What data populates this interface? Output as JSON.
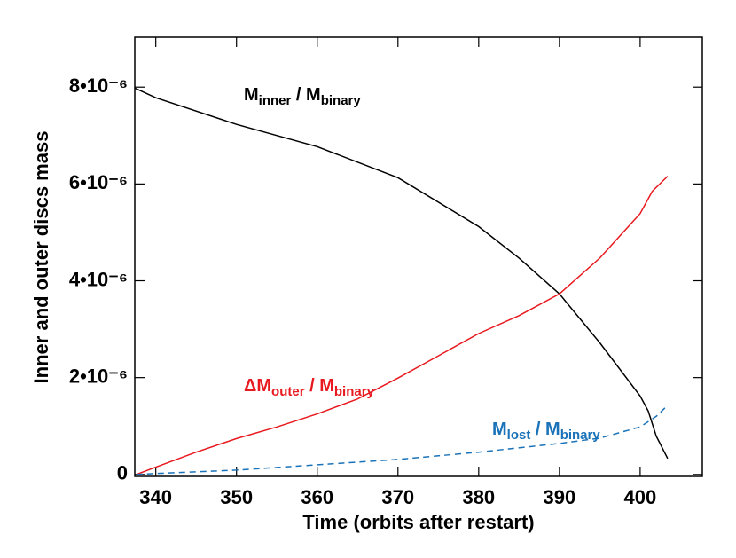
{
  "chart_data": {
    "type": "line",
    "xlabel": "Time (orbits after restart)",
    "ylabel": "Inner and outer discs mass",
    "xlim": [
      337.4,
      407.7
    ],
    "ylim": [
      -4e-08,
      9.03e-06
    ],
    "xticks": [
      340,
      350,
      360,
      370,
      380,
      390,
      400
    ],
    "yticks": [
      0,
      {
        "value": 2e-06,
        "label": "2•10⁻⁶"
      },
      {
        "value": 4e-06,
        "label": "4•10⁻⁶"
      },
      {
        "value": 6e-06,
        "label": "6•10⁻⁶"
      },
      {
        "value": 8e-06,
        "label": "8•10⁻⁶"
      }
    ],
    "series": [
      {
        "color": "#000000",
        "dash": false,
        "label_parts": [
          {
            "text": "M"
          },
          {
            "text": "inner",
            "sub": true
          },
          {
            "text": " / M"
          },
          {
            "text": "binary",
            "sub": true
          }
        ],
        "x": [
          337.4,
          340,
          350,
          360,
          370,
          380,
          385,
          390,
          395,
          400,
          401,
          402,
          403.4
        ],
        "values": [
          7.98e-06,
          7.78e-06,
          7.23e-06,
          6.77e-06,
          6.13e-06,
          5.12e-06,
          4.47e-06,
          3.73e-06,
          2.72e-06,
          1.62e-06,
          1.31e-06,
          7.9e-07,
          3.3e-07
        ]
      },
      {
        "color": "#e8191f",
        "dash": false,
        "label_parts": [
          {
            "text": "ΔM"
          },
          {
            "text": "outer",
            "sub": true
          },
          {
            "text": " / M"
          },
          {
            "text": "binary",
            "sub": true
          }
        ],
        "x": [
          337.6,
          340,
          345,
          350,
          355,
          360,
          365,
          370,
          375,
          380,
          385,
          390,
          395,
          400,
          401.5,
          403.4
        ],
        "values": [
          0,
          1.5e-07,
          4.6e-07,
          7.4e-07,
          9.8e-07,
          1.25e-06,
          1.56e-06,
          1.99e-06,
          2.45e-06,
          2.91e-06,
          3.28e-06,
          3.73e-06,
          4.47e-06,
          5.39e-06,
          5.85e-06,
          6.16e-06
        ]
      },
      {
        "color": "#1a72b8",
        "dash": true,
        "label_parts": [
          {
            "text": "M"
          },
          {
            "text": "lost",
            "sub": true
          },
          {
            "text": " / M"
          },
          {
            "text": "binary",
            "sub": true
          }
        ],
        "x": [
          337.6,
          340,
          350,
          360,
          370,
          380,
          390,
          395,
          400,
          402,
          403.4
        ],
        "values": [
          0,
          2e-08,
          9e-08,
          2e-07,
          3.1e-07,
          4.6e-07,
          6.4e-07,
          7.5e-07,
          9.8e-07,
          1.2e-06,
          1.43e-06
        ]
      }
    ]
  }
}
